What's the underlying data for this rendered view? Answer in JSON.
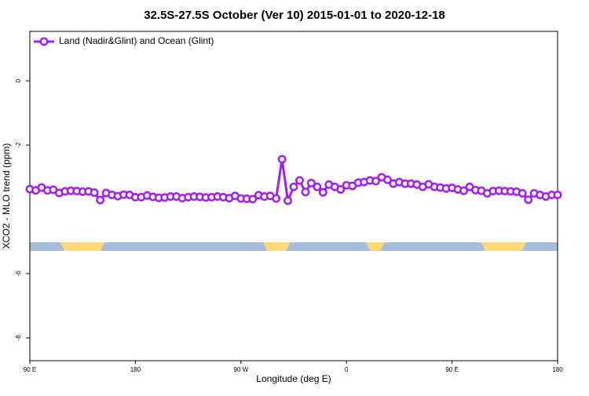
{
  "chart_data": {
    "type": "line",
    "title": "32.5S-27.5S October (Ver 10)   2015-01-01 to 2020-12-18",
    "x_label": "Longitude (deg E)",
    "y_label": "XCO2 - MLO trend (ppm)",
    "x": [
      90,
      95,
      100,
      105,
      110,
      115,
      120,
      125,
      130,
      135,
      140,
      145,
      150,
      155,
      160,
      165,
      170,
      175,
      180,
      185,
      190,
      195,
      200,
      205,
      210,
      215,
      220,
      225,
      230,
      235,
      240,
      245,
      250,
      255,
      260,
      265,
      270,
      275,
      280,
      285,
      290,
      295,
      300,
      305,
      310,
      315,
      320,
      325,
      330,
      335,
      340,
      345,
      350,
      355,
      360,
      365,
      370,
      375,
      380,
      385,
      390,
      395,
      400,
      405,
      410,
      415,
      420,
      425,
      430,
      435,
      440,
      445,
      450,
      455,
      460,
      465,
      470,
      475,
      480,
      485,
      490,
      495,
      500,
      505,
      510,
      515,
      520,
      525,
      530,
      535,
      540
    ],
    "series": [
      {
        "name": "Land (Nadir&Glint) and Ocean (Glint)",
        "color": "#a020f0",
        "values": [
          -3.37,
          -3.41,
          -3.32,
          -3.41,
          -3.39,
          -3.49,
          -3.44,
          -3.42,
          -3.43,
          -3.45,
          -3.44,
          -3.48,
          -3.71,
          -3.49,
          -3.55,
          -3.59,
          -3.54,
          -3.55,
          -3.62,
          -3.62,
          -3.57,
          -3.61,
          -3.64,
          -3.63,
          -3.6,
          -3.6,
          -3.65,
          -3.62,
          -3.6,
          -3.61,
          -3.63,
          -3.62,
          -3.6,
          -3.62,
          -3.65,
          -3.58,
          -3.66,
          -3.67,
          -3.68,
          -3.56,
          -3.6,
          -3.58,
          -3.66,
          -2.44,
          -3.73,
          -3.3,
          -3.1,
          -3.46,
          -3.18,
          -3.3,
          -3.47,
          -3.23,
          -3.3,
          -3.38,
          -3.25,
          -3.27,
          -3.17,
          -3.15,
          -3.1,
          -3.12,
          -3.0,
          -3.08,
          -3.2,
          -3.15,
          -3.2,
          -3.2,
          -3.23,
          -3.3,
          -3.22,
          -3.3,
          -3.32,
          -3.35,
          -3.33,
          -3.38,
          -3.42,
          -3.3,
          -3.4,
          -3.42,
          -3.5,
          -3.43,
          -3.42,
          -3.43,
          -3.44,
          -3.45,
          -3.5,
          -3.7,
          -3.5,
          -3.55,
          -3.6,
          -3.55,
          -3.55
        ]
      }
    ],
    "xlim": [
      90,
      540
    ],
    "xticks": [
      {
        "value": 90,
        "label": "90 E"
      },
      {
        "value": 180,
        "label": "180"
      },
      {
        "value": 270,
        "label": "90 W"
      },
      {
        "value": 360,
        "label": "0"
      },
      {
        "value": 450,
        "label": "90 E"
      },
      {
        "value": 540,
        "label": "180"
      }
    ],
    "ylim": [
      -8.71,
      1.54
    ],
    "yticks": [
      0,
      -2,
      -6,
      -8
    ],
    "legend": "top-left"
  }
}
